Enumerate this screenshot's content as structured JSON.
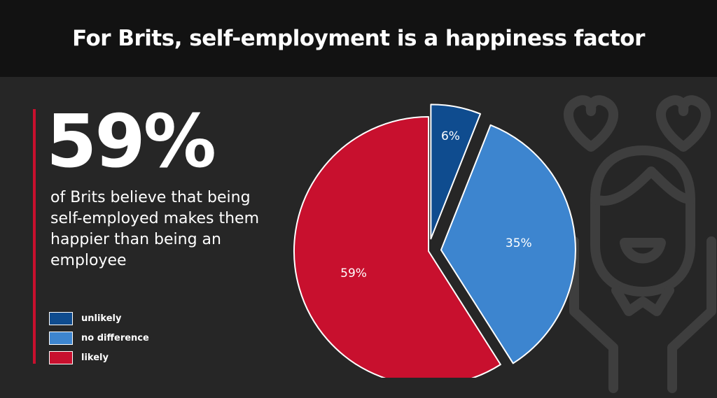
{
  "title": "For Brits, self-employment is a happiness factor",
  "stat": {
    "value": "59%",
    "description": "of Brits believe that being self-employed makes them happier than being an employee"
  },
  "legend": [
    {
      "label": "unlikely",
      "color": "#0f4c8f"
    },
    {
      "label": "no difference",
      "color": "#3d85cf"
    },
    {
      "label": "likely",
      "color": "#c8102e"
    }
  ],
  "chart_data": {
    "type": "pie",
    "categories": [
      "unlikely",
      "no difference",
      "likely"
    ],
    "values": [
      6,
      35,
      59
    ],
    "value_labels": [
      "6%",
      "35%",
      "59%"
    ],
    "colors": [
      "#0f4c8f",
      "#3d85cf",
      "#c8102e"
    ],
    "exploded": [
      true,
      true,
      false
    ],
    "legend_position": "bottom-left"
  },
  "decoration": {
    "icon": "happy-person-with-hearts-icon"
  }
}
